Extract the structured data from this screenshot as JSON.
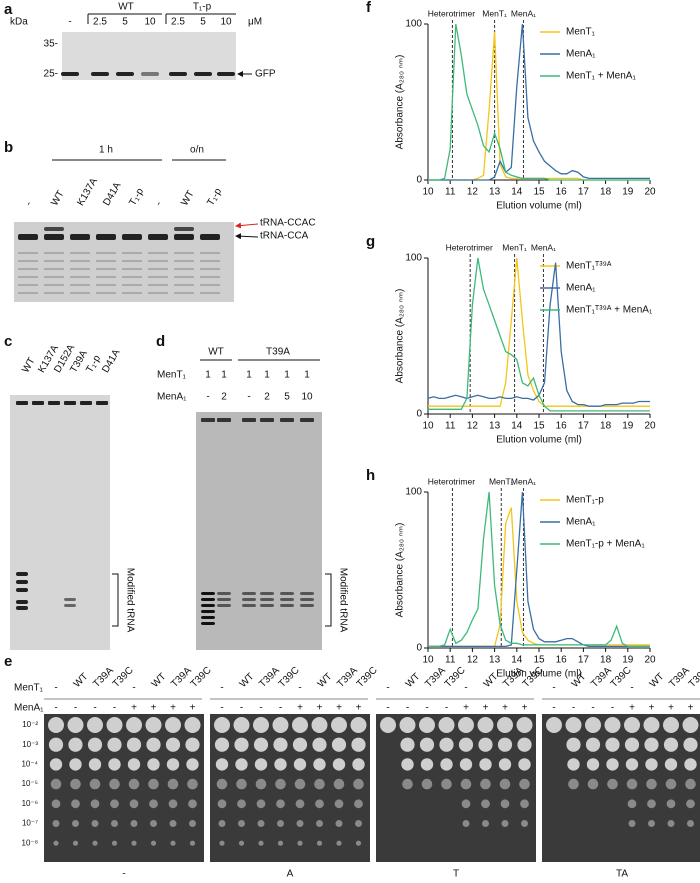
{
  "panels": {
    "a": {
      "label": "a",
      "kda": "kDa",
      "blank": "-",
      "groups": [
        "WT",
        "T₁-p"
      ],
      "conc": [
        "2.5",
        "5",
        "10",
        "2.5",
        "5",
        "10"
      ],
      "unit": "μM",
      "markers": [
        "35-",
        "25-"
      ],
      "band": "GFP"
    },
    "b": {
      "label": "b",
      "times": [
        "1 h",
        "o/n"
      ],
      "lanes": [
        "-",
        "WT",
        "K137A",
        "D41A",
        "T₁-p",
        "-",
        "WT",
        "T₁-p"
      ],
      "bands": [
        "tRNA-CCAC",
        "tRNA-CCA"
      ]
    },
    "c": {
      "label": "c",
      "lanes": [
        "WT",
        "K137A",
        "D152A",
        "T39A",
        "T₁-p",
        "D41A"
      ],
      "bracket": "Modified tRNA"
    },
    "d": {
      "label": "d",
      "groups": [
        "WT",
        "T39A"
      ],
      "rows": [
        {
          "name": "MenT₁",
          "values": [
            "1",
            "1",
            "1",
            "1",
            "1",
            "1"
          ]
        },
        {
          "name": "MenA₁",
          "values": [
            "-",
            "2",
            "-",
            "2",
            "5",
            "10"
          ]
        }
      ],
      "bracket": "Modified tRNA"
    },
    "e": {
      "label": "e",
      "rows": [
        {
          "name": "MenT₁",
          "values": [
            "-",
            "WT",
            "T39A",
            "T39C",
            "-",
            "WT",
            "T39A",
            "T39C"
          ]
        },
        {
          "name": "MenA₁",
          "values": [
            "-",
            "-",
            "-",
            "-",
            "+",
            "+",
            "+",
            "+"
          ]
        }
      ],
      "dilutions": [
        "10⁻²",
        "10⁻³",
        "10⁻⁴",
        "10⁻⁵",
        "10⁻⁶",
        "10⁻⁷",
        "10⁻⁸"
      ],
      "plates": [
        "-",
        "A",
        "T",
        "TA"
      ]
    }
  },
  "chart_data": [
    {
      "type": "line",
      "label": "f",
      "xlabel": "Elution volume (ml)",
      "ylabel": "Absorbance (A₂₈₀ ₙₘ)",
      "xlim": [
        10,
        20
      ],
      "xticks": [
        10,
        11,
        12,
        13,
        14,
        15,
        16,
        17,
        18,
        19,
        20
      ],
      "ylim": [
        0,
        100
      ],
      "yticks": [
        0,
        100
      ],
      "annotations": [
        {
          "text": "Heterotrimer",
          "x": 11.1
        },
        {
          "text": "MenT₁",
          "x": 13.0
        },
        {
          "text": "MenA₁",
          "x": 14.3
        }
      ],
      "x": [
        10,
        10.25,
        10.5,
        10.75,
        11,
        11.25,
        11.5,
        11.75,
        12,
        12.25,
        12.5,
        12.75,
        13,
        13.25,
        13.5,
        13.75,
        14,
        14.25,
        14.5,
        14.75,
        15,
        15.25,
        15.5,
        15.75,
        16,
        16.25,
        16.5,
        16.75,
        17,
        17.25,
        17.5,
        17.75,
        18,
        18.25,
        18.5,
        18.75,
        19,
        19.25,
        19.5,
        19.75,
        20
      ],
      "series": [
        {
          "name": "MenT₁",
          "color": "#f5c518",
          "values": [
            0,
            0,
            0,
            0,
            0,
            0,
            0,
            0,
            0,
            1,
            3,
            45,
            95,
            10,
            2,
            1,
            1,
            1,
            1,
            1,
            1,
            1,
            1,
            1,
            1,
            1,
            1,
            1,
            0,
            0,
            0,
            0,
            0,
            0,
            0,
            0,
            0,
            0,
            0,
            0,
            0
          ]
        },
        {
          "name": "MenA₁",
          "color": "#3a6ea5",
          "values": [
            0,
            0,
            0,
            0,
            0,
            0,
            0,
            0,
            0,
            0,
            0,
            0,
            2,
            12,
            5,
            8,
            60,
            100,
            40,
            25,
            18,
            12,
            9,
            6,
            4,
            4,
            6,
            5,
            2,
            1,
            1,
            1,
            1,
            1,
            1,
            1,
            1,
            1,
            1,
            1,
            1
          ]
        },
        {
          "name": "MenT₁ + MenA₁",
          "color": "#3dba7a",
          "values": [
            0,
            0,
            0,
            1,
            20,
            100,
            80,
            55,
            45,
            35,
            22,
            18,
            30,
            20,
            5,
            3,
            2,
            1,
            1,
            1,
            1,
            1,
            0,
            0,
            0,
            0,
            0,
            0,
            0,
            0,
            0,
            0,
            0,
            0,
            0,
            0,
            0,
            0,
            0,
            0,
            0
          ]
        }
      ]
    },
    {
      "type": "line",
      "label": "g",
      "xlabel": "Elution volume (ml)",
      "ylabel": "Absorbance (A₂₈₀ ₙₘ)",
      "xlim": [
        10,
        20
      ],
      "xticks": [
        10,
        11,
        12,
        13,
        14,
        15,
        16,
        17,
        18,
        19,
        20
      ],
      "ylim": [
        0,
        100
      ],
      "yticks": [
        0,
        100
      ],
      "annotations": [
        {
          "text": "Heterotrimer",
          "x": 11.9
        },
        {
          "text": "MenT₁",
          "x": 13.9
        },
        {
          "text": "MenA₁",
          "x": 15.2
        }
      ],
      "x": [
        10,
        10.25,
        10.5,
        10.75,
        11,
        11.25,
        11.5,
        11.75,
        12,
        12.25,
        12.5,
        12.75,
        13,
        13.25,
        13.5,
        13.75,
        14,
        14.25,
        14.5,
        14.75,
        15,
        15.25,
        15.5,
        15.75,
        16,
        16.25,
        16.5,
        16.75,
        17,
        17.25,
        17.5,
        17.75,
        18,
        18.25,
        18.5,
        18.75,
        19,
        19.25,
        19.5,
        19.75,
        20
      ],
      "series": [
        {
          "name": "MenT₁ᵀ³⁹ᴬ",
          "color": "#f5c518",
          "values": [
            5,
            5,
            5,
            5,
            5,
            5,
            5,
            5,
            5,
            5,
            5,
            5,
            5,
            5,
            20,
            60,
            100,
            60,
            25,
            15,
            8,
            5,
            5,
            5,
            5,
            5,
            5,
            5,
            5,
            5,
            5,
            5,
            5,
            5,
            5,
            5,
            5,
            5,
            5,
            5,
            5
          ]
        },
        {
          "name": "MenA₁",
          "color": "#3a6ea5",
          "values": [
            10,
            11,
            10,
            10,
            11,
            12,
            11,
            10,
            11,
            12,
            11,
            10,
            10,
            11,
            10,
            10,
            11,
            10,
            10,
            9,
            12,
            20,
            70,
            97,
            40,
            15,
            8,
            6,
            6,
            5,
            5,
            5,
            6,
            6,
            6,
            7,
            7,
            7,
            8,
            8,
            8
          ]
        },
        {
          "name": "MenT₁ᵀ³⁹ᴬ + MenA₁",
          "color": "#3dba7a",
          "values": [
            3,
            3,
            3,
            3,
            3,
            3,
            3,
            10,
            70,
            100,
            80,
            70,
            60,
            50,
            40,
            38,
            35,
            20,
            18,
            23,
            12,
            5,
            2,
            2,
            2,
            2,
            2,
            2,
            2,
            2,
            2,
            2,
            2,
            2,
            2,
            2,
            2,
            2,
            2,
            2,
            2
          ]
        }
      ]
    },
    {
      "type": "line",
      "label": "h",
      "xlabel": "Elution volume (ml)",
      "ylabel": "Absorbance (A₂₈₀ ₙₘ)",
      "xlim": [
        10,
        20
      ],
      "xticks": [
        10,
        11,
        12,
        13,
        14,
        15,
        16,
        17,
        18,
        19,
        20
      ],
      "ylim": [
        0,
        100
      ],
      "yticks": [
        0,
        100
      ],
      "annotations": [
        {
          "text": "Heterotrimer",
          "x": 11.1
        },
        {
          "text": "MenT₁",
          "x": 13.3
        },
        {
          "text": "MenA₁",
          "x": 14.3
        }
      ],
      "x": [
        10,
        10.25,
        10.5,
        10.75,
        11,
        11.25,
        11.5,
        11.75,
        12,
        12.25,
        12.5,
        12.75,
        13,
        13.25,
        13.5,
        13.75,
        14,
        14.25,
        14.5,
        14.75,
        15,
        15.25,
        15.5,
        15.75,
        16,
        16.25,
        16.5,
        16.75,
        17,
        17.25,
        17.5,
        17.75,
        18,
        18.25,
        18.5,
        18.75,
        19,
        19.25,
        19.5,
        19.75,
        20
      ],
      "series": [
        {
          "name": "MenT₁-p",
          "color": "#f5c518",
          "values": [
            1,
            1,
            1,
            1,
            1,
            1,
            1,
            1,
            1,
            1,
            1,
            1,
            1,
            15,
            80,
            90,
            30,
            10,
            5,
            3,
            2,
            2,
            2,
            2,
            2,
            2,
            2,
            2,
            2,
            2,
            2,
            2,
            2,
            2,
            2,
            2,
            2,
            2,
            2,
            2,
            2
          ]
        },
        {
          "name": "MenA₁",
          "color": "#3a6ea5",
          "values": [
            1,
            1,
            1,
            1,
            1,
            1,
            1,
            1,
            1,
            1,
            1,
            1,
            1,
            1,
            1,
            2,
            50,
            100,
            30,
            12,
            6,
            4,
            4,
            4,
            5,
            6,
            6,
            4,
            2,
            1,
            1,
            1,
            1,
            1,
            1,
            1,
            1,
            1,
            1,
            1,
            1
          ]
        },
        {
          "name": "MenT₁-p + MenA₁",
          "color": "#3dba7a",
          "values": [
            1,
            1,
            1,
            2,
            12,
            3,
            5,
            10,
            18,
            25,
            70,
            100,
            40,
            15,
            5,
            3,
            3,
            2,
            2,
            2,
            2,
            2,
            2,
            2,
            2,
            2,
            2,
            2,
            2,
            2,
            2,
            2,
            2,
            5,
            14,
            3,
            1,
            1,
            1,
            1,
            1
          ]
        }
      ]
    }
  ]
}
